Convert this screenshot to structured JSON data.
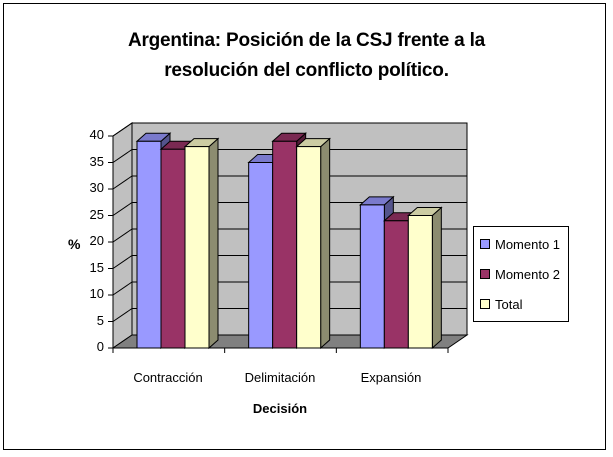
{
  "chart_data": {
    "type": "bar",
    "title_line1": "Argentina: Posición de la CSJ frente a la",
    "title_line2": "resolución del conflicto político.",
    "xlabel": "Decisión",
    "ylabel": "%",
    "categories": [
      "Contracción",
      "Delimitación",
      "Expansión"
    ],
    "ylim": [
      0,
      40
    ],
    "yticks": [
      0,
      5,
      10,
      15,
      20,
      25,
      30,
      35,
      40
    ],
    "series": [
      {
        "name": "Momento 1",
        "values": [
          39,
          35,
          27
        ],
        "color": "#9999ff"
      },
      {
        "name": "Momento 2",
        "values": [
          37.5,
          39,
          24
        ],
        "color": "#993366"
      },
      {
        "name": "Total",
        "values": [
          38,
          38,
          25
        ],
        "color": "#ffffcc"
      }
    ],
    "plot_background": "#c0c0c0",
    "floor_color": "#808080",
    "grid": true,
    "legend_position": "right"
  }
}
